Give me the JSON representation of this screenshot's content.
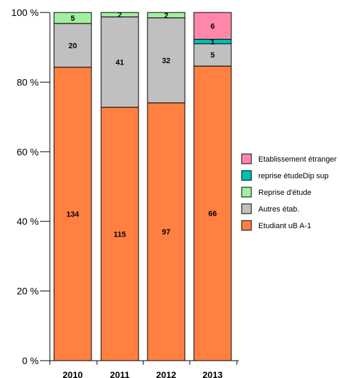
{
  "chart_data": {
    "type": "bar",
    "stacked": "percent",
    "categories": [
      "2010",
      "2011",
      "2012",
      "2013"
    ],
    "y_tick_labels": [
      "0 %",
      "20 %",
      "40 %",
      "60 %",
      "80 %",
      "100 %"
    ],
    "ylim": [
      0,
      100
    ],
    "grid": false,
    "legend_position": "right",
    "series": [
      {
        "name": "Etudiant uB A-1",
        "color": "#ff8040",
        "values": [
          134,
          115,
          97,
          66
        ]
      },
      {
        "name": "Autres étab.",
        "color": "#c0c0c0",
        "values": [
          20,
          41,
          32,
          5
        ]
      },
      {
        "name": "Reprise d'étude",
        "color": "#a0f0a0",
        "values": [
          5,
          2,
          2,
          0
        ]
      },
      {
        "name": "reprise étudeDip sup",
        "color": "#00c0b0",
        "values": [
          0,
          0,
          0,
          1
        ]
      },
      {
        "name": "Etablissement étranger",
        "color": "#ff88aa",
        "values": [
          0,
          0,
          0,
          6
        ]
      }
    ]
  }
}
